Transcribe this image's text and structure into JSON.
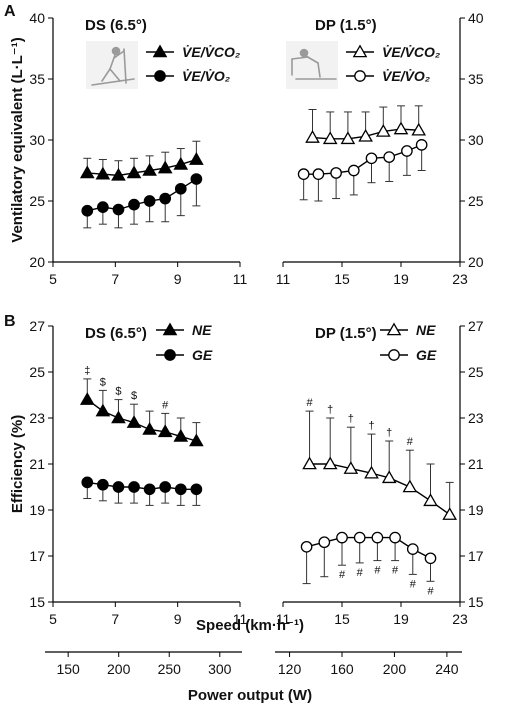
{
  "chart_data": [
    {
      "panel": "A",
      "type": "line",
      "ylabel": "Ventilatory equivalent (L·L⁻¹)",
      "ylim": [
        20,
        40
      ],
      "yticks": [
        "20",
        "25",
        "30",
        "35",
        "40"
      ],
      "yticks_right": [
        "20",
        "25",
        "30",
        "35",
        "40"
      ],
      "subplots": [
        {
          "title": "DS (6.5°)",
          "xlim": [
            5,
            11
          ],
          "xticks": [
            "5",
            "7",
            "9",
            "11"
          ],
          "series": [
            {
              "name": "V̇E/V̇CO₂",
              "marker": "filled-triangle",
              "x": [
                6.1,
                6.6,
                7.1,
                7.6,
                8.1,
                8.6,
                9.1,
                9.6
              ],
              "y": [
                27.3,
                27.2,
                27.1,
                27.3,
                27.5,
                27.7,
                28.0,
                28.4
              ],
              "err": [
                1.2,
                1.2,
                1.2,
                1.2,
                1.2,
                1.3,
                1.3,
                1.5
              ]
            },
            {
              "name": "V̇E/V̇O₂",
              "marker": "filled-circle",
              "x": [
                6.1,
                6.6,
                7.1,
                7.6,
                8.1,
                8.6,
                9.1,
                9.6
              ],
              "y": [
                24.2,
                24.5,
                24.3,
                24.7,
                25.0,
                25.2,
                26.0,
                26.8
              ],
              "err": [
                1.4,
                1.4,
                1.5,
                1.6,
                1.7,
                1.9,
                2.2,
                2.2
              ]
            }
          ]
        },
        {
          "title": "DP (1.5°)",
          "xlim": [
            11,
            23
          ],
          "xticks": [
            "11",
            "15",
            "19",
            "23"
          ],
          "series": [
            {
              "name": "V̇E/V̇CO₂",
              "marker": "open-triangle",
              "x": [
                13.0,
                14.2,
                15.4,
                16.6,
                17.8,
                19.0,
                20.2
              ],
              "y": [
                30.2,
                30.1,
                30.1,
                30.3,
                30.7,
                30.9,
                30.8
              ],
              "err": [
                2.3,
                2.2,
                2.2,
                2.0,
                2.0,
                1.9,
                2.0
              ]
            },
            {
              "name": "V̇E/V̇O₂",
              "marker": "open-circle",
              "x": [
                12.4,
                13.4,
                14.6,
                15.8,
                17.0,
                18.2,
                19.4,
                20.4
              ],
              "y": [
                27.2,
                27.2,
                27.3,
                27.5,
                28.5,
                28.6,
                29.1,
                29.6
              ],
              "err": [
                2.1,
                2.2,
                2.1,
                2.0,
                2.0,
                2.0,
                2.0,
                2.1
              ]
            }
          ]
        }
      ]
    },
    {
      "panel": "B",
      "type": "line",
      "ylabel": "Efficiency (%)",
      "ylim": [
        15,
        27
      ],
      "yticks": [
        "15",
        "17",
        "19",
        "21",
        "23",
        "25",
        "27"
      ],
      "yticks_right": [
        "15",
        "17",
        "19",
        "21",
        "23",
        "25",
        "27"
      ],
      "subplots": [
        {
          "title": "DS (6.5°)",
          "xlim": [
            5,
            11
          ],
          "xticks": [
            "5",
            "7",
            "9",
            "11"
          ],
          "series": [
            {
              "name": "NE",
              "marker": "filled-triangle",
              "x": [
                6.1,
                6.6,
                7.1,
                7.6,
                8.1,
                8.6,
                9.1,
                9.6
              ],
              "y": [
                23.8,
                23.3,
                23.0,
                22.8,
                22.5,
                22.4,
                22.2,
                22.0
              ],
              "err": [
                0.9,
                0.9,
                0.8,
                0.8,
                0.8,
                0.8,
                0.8,
                0.8
              ],
              "significance": [
                "‡",
                "$",
                "$",
                "$",
                "",
                "#",
                "",
                ""
              ]
            },
            {
              "name": "GE",
              "marker": "filled-circle",
              "x": [
                6.1,
                6.6,
                7.1,
                7.6,
                8.1,
                8.6,
                9.1,
                9.6
              ],
              "y": [
                20.2,
                20.1,
                20.0,
                20.0,
                19.9,
                20.0,
                19.9,
                19.9
              ],
              "err": [
                0.7,
                0.7,
                0.7,
                0.7,
                0.7,
                0.7,
                0.7,
                0.7
              ]
            }
          ]
        },
        {
          "title": "DP (1.5°)",
          "xlim": [
            11,
            23
          ],
          "xticks": [
            "11",
            "15",
            "19",
            "23"
          ],
          "series": [
            {
              "name": "NE",
              "marker": "open-triangle",
              "x": [
                12.8,
                14.2,
                15.6,
                17.0,
                18.2,
                19.6,
                21.0,
                22.3
              ],
              "y": [
                21.0,
                21.0,
                20.8,
                20.6,
                20.4,
                20.0,
                19.4,
                18.8
              ],
              "err": [
                2.3,
                2.0,
                1.8,
                1.7,
                1.6,
                1.6,
                1.6,
                1.4
              ],
              "significance": [
                "#",
                "†",
                "†",
                "†",
                "†",
                "#",
                "",
                ""
              ]
            },
            {
              "name": "GE",
              "marker": "open-circle",
              "x": [
                12.6,
                13.8,
                15.0,
                16.2,
                17.4,
                18.6,
                19.8,
                21.0
              ],
              "y": [
                17.4,
                17.6,
                17.8,
                17.8,
                17.8,
                17.8,
                17.3,
                16.9
              ],
              "err": [
                1.6,
                1.5,
                1.2,
                1.1,
                1.0,
                1.0,
                1.1,
                1.0
              ],
              "significance": [
                "",
                "",
                "#",
                "#",
                "#",
                "#",
                "#",
                "#"
              ]
            }
          ]
        }
      ],
      "xlabel": "Speed (km·h⁻¹)"
    },
    {
      "panel": "power-axes",
      "type": "axis",
      "xlabel": "Power output (W)",
      "subplots": [
        {
          "xlim": [
            135,
            320
          ],
          "xticks": [
            "150",
            "200",
            "250",
            "300"
          ]
        },
        {
          "xlim": [
            115,
            250
          ],
          "xticks": [
            "120",
            "160",
            "200",
            "240"
          ]
        }
      ]
    }
  ],
  "legend": {
    "ds_a": [
      "V̇E/V̇CO₂",
      "V̇E/V̇O₂"
    ],
    "dp_a": [
      "V̇E/V̇CO₂",
      "V̇E/V̇O₂"
    ],
    "ds_b": [
      "NE",
      "GE"
    ],
    "dp_b": [
      "NE",
      "GE"
    ]
  },
  "icons": [
    "skier-diagonal-stride-icon",
    "skier-double-poling-icon"
  ]
}
